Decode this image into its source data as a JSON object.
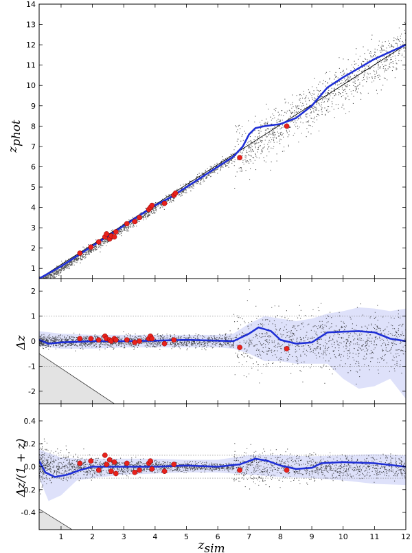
{
  "chart_data": [
    {
      "type": "scatter",
      "panel": "top",
      "ylabel": "z",
      "ylabel_sub": "phot",
      "xlim": [
        0.3,
        12
      ],
      "ylim": [
        0.5,
        14
      ],
      "yticks": [
        1,
        2,
        3,
        4,
        5,
        6,
        7,
        8,
        9,
        10,
        11,
        12,
        13,
        14
      ],
      "series": [
        {
          "role": "one-to-one line",
          "color": "#000000",
          "x": [
            0.3,
            12
          ],
          "y": [
            0.5,
            12
          ]
        },
        {
          "role": "running median",
          "color": "#1f2fd6",
          "x": [
            0.3,
            1,
            1.5,
            2,
            2.5,
            3,
            3.5,
            4,
            4.5,
            5,
            5.5,
            6,
            6.5,
            6.8,
            7,
            7.2,
            7.5,
            8,
            8.5,
            9,
            9.5,
            10,
            11,
            12
          ],
          "y": [
            0.5,
            1.1,
            1.6,
            2.1,
            2.6,
            3.1,
            3.6,
            4.1,
            4.5,
            5.0,
            5.5,
            6.0,
            6.5,
            7.0,
            7.6,
            7.9,
            8.0,
            8.1,
            8.4,
            9.0,
            9.9,
            10.4,
            11.3,
            12.0
          ]
        },
        {
          "role": "spectroscopic objects",
          "color": "#e8221c",
          "x": [
            1.6,
            1.95,
            2.2,
            2.4,
            2.45,
            2.55,
            2.6,
            2.7,
            2.75,
            3.1,
            3.35,
            3.5,
            3.8,
            3.85,
            3.9,
            4.3,
            4.6,
            4.65,
            6.7,
            8.2
          ],
          "y": [
            1.75,
            2.05,
            2.3,
            2.55,
            2.7,
            2.45,
            2.6,
            2.55,
            2.8,
            3.2,
            3.3,
            3.5,
            3.9,
            4.0,
            4.1,
            4.2,
            4.6,
            4.7,
            6.45,
            8.0
          ]
        }
      ]
    },
    {
      "type": "scatter",
      "panel": "middle",
      "ylabel": "Δz",
      "xlim": [
        0.3,
        12
      ],
      "ylim": [
        -2.5,
        2.5
      ],
      "yticks": [
        -2,
        -1,
        0,
        1,
        2
      ],
      "reference_lines": [
        -1,
        1
      ],
      "series": [
        {
          "role": "running median",
          "color": "#1f2fd6",
          "x": [
            0.3,
            0.6,
            1,
            2,
            3,
            4,
            5,
            6,
            6.5,
            7,
            7.3,
            7.7,
            8,
            8.5,
            9,
            9.5,
            10,
            10.5,
            11,
            11.5,
            12
          ],
          "y": [
            0.05,
            -0.1,
            -0.05,
            0.0,
            0.0,
            0.02,
            0.05,
            0.02,
            0.0,
            0.3,
            0.55,
            0.4,
            0.05,
            -0.1,
            -0.05,
            0.35,
            0.38,
            0.4,
            0.35,
            0.1,
            0.0
          ]
        },
        {
          "role": "scatter band",
          "color": "#c8cdf7",
          "x": [
            0.3,
            1,
            2,
            3,
            4,
            5,
            6,
            6.5,
            7,
            7.5,
            8,
            8.5,
            9,
            9.5,
            10,
            10.5,
            11,
            11.5,
            12
          ],
          "upper": [
            0.4,
            0.3,
            0.25,
            0.25,
            0.25,
            0.25,
            0.25,
            0.3,
            0.7,
            1.0,
            0.9,
            0.8,
            0.9,
            1.1,
            1.2,
            1.35,
            1.3,
            1.2,
            1.3
          ],
          "lower": [
            -0.2,
            -0.3,
            -0.3,
            -0.25,
            -0.25,
            -0.25,
            -0.25,
            -0.3,
            -0.5,
            -0.8,
            -0.8,
            -0.9,
            -0.9,
            -0.9,
            -1.5,
            -1.9,
            -1.8,
            -1.5,
            -2.3
          ]
        },
        {
          "role": "spectroscopic objects",
          "color": "#e8221c",
          "x": [
            1.6,
            1.95,
            2.2,
            2.4,
            2.45,
            2.55,
            2.6,
            2.7,
            2.75,
            3.1,
            3.35,
            3.5,
            3.8,
            3.85,
            3.9,
            4.3,
            4.6,
            6.7,
            8.2
          ],
          "y": [
            0.1,
            0.1,
            0.05,
            0.2,
            0.1,
            0.05,
            0.0,
            0.1,
            0.05,
            0.05,
            -0.05,
            0.0,
            0.1,
            0.2,
            0.1,
            -0.1,
            0.05,
            -0.25,
            -0.3
          ]
        }
      ]
    },
    {
      "type": "scatter",
      "panel": "bottom",
      "ylabel": "Δz/(1 + z)",
      "xlabel": "z",
      "xlabel_sub": "sim",
      "xlim": [
        0.3,
        12
      ],
      "ylim": [
        -0.55,
        0.55
      ],
      "xticks": [
        1,
        2,
        3,
        4,
        5,
        6,
        7,
        8,
        9,
        10,
        11,
        12
      ],
      "yticks": [
        -0.4,
        -0.2,
        0.0,
        0.2,
        0.4
      ],
      "reference_lines": [
        -0.1,
        0.1
      ],
      "series": [
        {
          "role": "running median",
          "color": "#1f2fd6",
          "x": [
            0.3,
            0.5,
            0.8,
            1.2,
            1.6,
            2,
            3,
            4,
            5,
            6,
            6.7,
            7.2,
            7.6,
            8,
            8.5,
            9,
            9.3,
            10,
            11,
            12
          ],
          "y": [
            0.05,
            -0.05,
            -0.09,
            -0.07,
            -0.03,
            0.0,
            0.0,
            0.0,
            0.01,
            0.0,
            0.02,
            0.07,
            0.05,
            0.01,
            -0.02,
            -0.01,
            0.03,
            0.04,
            0.03,
            0.0
          ]
        },
        {
          "role": "scatter band",
          "color": "#c8cdf7",
          "x": [
            0.3,
            0.6,
            1,
            1.5,
            2,
            3,
            4,
            5,
            6,
            7,
            8,
            9,
            10,
            11,
            12
          ],
          "upper": [
            0.15,
            0.12,
            0.08,
            0.07,
            0.07,
            0.07,
            0.07,
            0.06,
            0.06,
            0.1,
            0.1,
            0.09,
            0.1,
            0.11,
            0.1
          ],
          "lower": [
            -0.1,
            -0.3,
            -0.25,
            -0.12,
            -0.1,
            -0.07,
            -0.06,
            -0.05,
            -0.05,
            -0.07,
            -0.09,
            -0.1,
            -0.12,
            -0.15,
            -0.16
          ]
        },
        {
          "role": "spectroscopic objects",
          "color": "#e8221c",
          "x": [
            1.6,
            1.95,
            2.2,
            2.4,
            2.45,
            2.55,
            2.6,
            2.7,
            2.75,
            3.1,
            3.35,
            3.5,
            3.8,
            3.85,
            3.9,
            4.3,
            4.6,
            6.7,
            8.2
          ],
          "y": [
            0.03,
            0.05,
            -0.03,
            0.1,
            0.02,
            0.06,
            -0.04,
            0.04,
            -0.06,
            0.03,
            -0.05,
            -0.03,
            0.03,
            0.05,
            -0.02,
            -0.04,
            0.02,
            -0.03,
            -0.03
          ]
        }
      ]
    }
  ]
}
